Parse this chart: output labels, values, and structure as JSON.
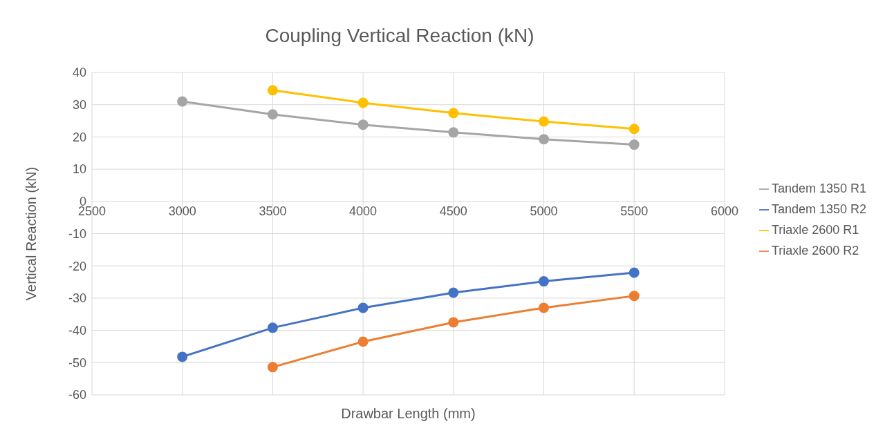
{
  "chart_data": {
    "type": "line",
    "title": "Coupling Vertical Reaction (kN)",
    "xlabel": "Drawbar Length (mm)",
    "ylabel": "Vertical Reaction (kN)",
    "x": [
      3000,
      3500,
      4000,
      4500,
      5000,
      5500
    ],
    "series": [
      {
        "name": "Tandem 1350 R1",
        "color": "#a5a5a5",
        "values": [
          31.0,
          27.0,
          23.8,
          21.4,
          19.3,
          17.6
        ]
      },
      {
        "name": "Tandem 1350 R2",
        "color": "#4472c4",
        "values": [
          -48.2,
          -39.2,
          -33.0,
          -28.3,
          -24.8,
          -22.1
        ]
      },
      {
        "name": "Triaxle 2600 R1",
        "color": "#ffc000",
        "values": [
          null,
          34.5,
          30.6,
          27.4,
          24.8,
          22.5
        ]
      },
      {
        "name": "Triaxle 2600 R2",
        "color": "#ed7d31",
        "values": [
          null,
          -51.4,
          -43.5,
          -37.5,
          -33.0,
          -29.3
        ]
      }
    ],
    "xlim": [
      2500,
      6000
    ],
    "xticks": [
      2500,
      3000,
      3500,
      4000,
      4500,
      5000,
      5500,
      6000
    ],
    "ylim": [
      -60,
      40
    ],
    "yticks": [
      -60,
      -50,
      -40,
      -30,
      -20,
      -10,
      0,
      10,
      20,
      30,
      40
    ],
    "grid": true,
    "legend": "right",
    "marker": "circle",
    "line_style": "solid"
  }
}
